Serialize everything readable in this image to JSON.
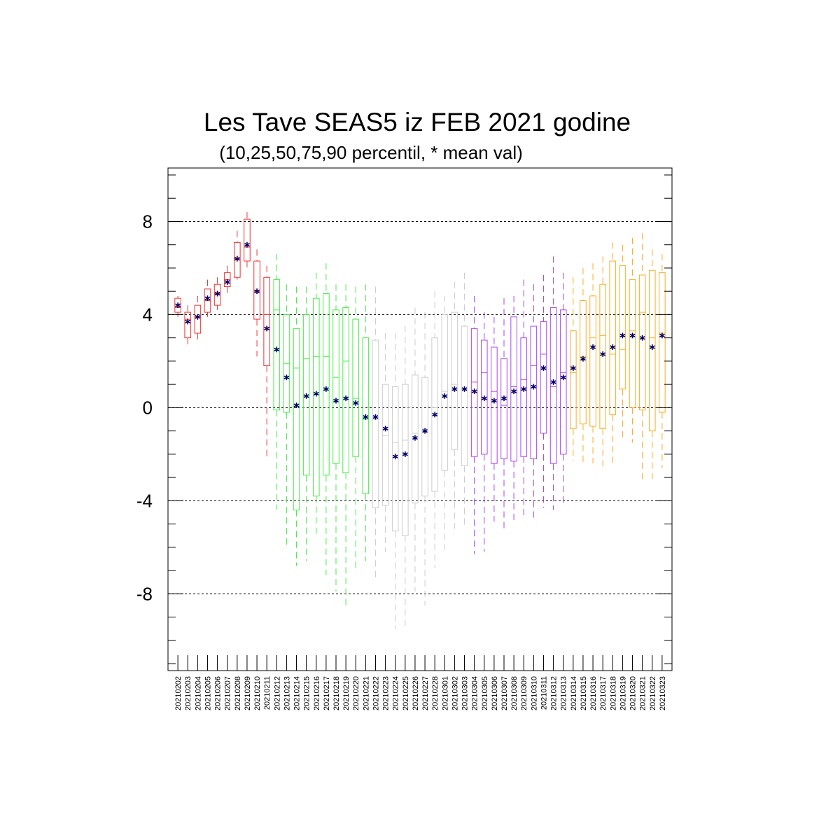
{
  "chart_data": {
    "type": "box",
    "title": "Les Tave SEAS5 iz FEB 2021 godine",
    "subtitle": "(10,25,50,75,90 percentil, * mean val)",
    "xlabel": "",
    "ylabel": "",
    "ylim": [
      -11.3,
      10.3
    ],
    "yticks": [
      8,
      4,
      0,
      -4,
      -8
    ],
    "ytick_labels": [
      "8",
      "4",
      "0",
      "-4",
      "-8"
    ],
    "grid": "dashed horizontal at major y ticks",
    "colors": {
      "red": "#ee3333",
      "green": "#44ee44",
      "gray": "#cccccc",
      "purple": "#aa44ee",
      "orange": "#ffaa22",
      "mean_marker": "#000066"
    },
    "series": [
      {
        "color": "red",
        "categories": [
          "20210202",
          "20210203",
          "20210204",
          "20210205",
          "20210206",
          "20210207",
          "20210208",
          "20210209",
          "20210210",
          "20210211"
        ],
        "p10": [
          3.9,
          2.7,
          2.9,
          3.9,
          4.2,
          4.9,
          5.5,
          5.9,
          2.2,
          -2.1
        ],
        "p25": [
          4.1,
          3.0,
          3.2,
          4.1,
          4.4,
          5.2,
          5.6,
          6.3,
          3.8,
          1.8
        ],
        "p50": [
          4.3,
          3.8,
          3.9,
          4.6,
          4.9,
          5.5,
          6.4,
          6.9,
          5.0,
          4.0
        ],
        "p75": [
          4.7,
          4.1,
          4.4,
          5.1,
          5.3,
          5.8,
          7.1,
          8.1,
          6.3,
          5.6
        ],
        "p90": [
          4.8,
          4.4,
          4.8,
          5.5,
          5.6,
          6.1,
          7.6,
          8.4,
          6.8,
          6.1
        ],
        "mean": [
          4.4,
          3.7,
          3.9,
          4.7,
          4.9,
          5.4,
          6.4,
          7.0,
          5.0,
          3.4
        ]
      },
      {
        "color": "green",
        "categories": [
          "20210212",
          "20210213",
          "20210214",
          "20210215",
          "20210216",
          "20210217",
          "20210218",
          "20210219",
          "20210220",
          "20210221"
        ],
        "p10": [
          -4.4,
          -5.9,
          -6.8,
          -6.6,
          -5.6,
          -7.2,
          -7.9,
          -8.6,
          -7.0,
          -6.6
        ],
        "p25": [
          -0.1,
          -0.2,
          -4.4,
          -2.9,
          -3.8,
          -2.9,
          -2.4,
          -2.8,
          -2.1,
          -3.7
        ],
        "p50": [
          4.2,
          1.9,
          1.7,
          2.1,
          2.2,
          2.2,
          1.3,
          2.0,
          0.4,
          -0.5
        ],
        "p75": [
          5.5,
          4.0,
          3.4,
          4.0,
          4.7,
          4.9,
          4.2,
          4.3,
          3.8,
          3.0
        ],
        "p90": [
          6.6,
          5.3,
          5.2,
          5.2,
          5.8,
          6.2,
          5.3,
          5.3,
          5.2,
          5.3
        ],
        "mean": [
          2.5,
          1.3,
          0.1,
          0.5,
          0.6,
          0.8,
          0.3,
          0.4,
          0.2,
          -0.4
        ]
      },
      {
        "color": "gray",
        "categories": [
          "20210222",
          "20210223",
          "20210224",
          "20210225",
          "20210226",
          "20210227",
          "20210228",
          "20210301",
          "20210302",
          "20210303"
        ],
        "p10": [
          -7.3,
          -6.2,
          -9.5,
          -9.5,
          -7.9,
          -8.5,
          -6.9,
          -6.3,
          -5.2,
          -5.1
        ],
        "p25": [
          -4.3,
          -4.2,
          -5.3,
          -5.5,
          -4.1,
          -3.8,
          -3.6,
          -2.7,
          -1.8,
          -2.5
        ],
        "p50": [
          -0.5,
          -1.2,
          -1.5,
          -1.4,
          -1.1,
          -0.9,
          0.0,
          0.7,
          1.0,
          0.8
        ],
        "p75": [
          2.9,
          1.0,
          0.9,
          1.0,
          1.4,
          1.3,
          3.0,
          4.0,
          4.1,
          3.5
        ],
        "p90": [
          5.2,
          3.2,
          3.2,
          3.5,
          4.3,
          4.1,
          5.0,
          4.8,
          5.4,
          5.8
        ],
        "mean": [
          -0.4,
          -0.9,
          -2.1,
          -2.0,
          -1.3,
          -1.0,
          -0.3,
          0.5,
          0.8,
          0.8
        ]
      },
      {
        "color": "purple",
        "categories": [
          "20210304",
          "20210305",
          "20210306",
          "20210307",
          "20210308",
          "20210309",
          "20210310",
          "20210311",
          "20210312",
          "20210313"
        ],
        "p10": [
          -6.3,
          -6.2,
          -4.9,
          -5.2,
          -4.9,
          -4.7,
          -4.9,
          -4.3,
          -4.4,
          -4.2
        ],
        "p25": [
          -2.1,
          -2.0,
          -2.4,
          -2.2,
          -2.3,
          -2.1,
          -2.2,
          -1.1,
          -2.4,
          -2.0
        ],
        "p50": [
          1.1,
          1.5,
          0.7,
          0.1,
          0.9,
          1.2,
          1.8,
          2.3,
          0.9,
          1.5
        ],
        "p75": [
          3.4,
          2.9,
          2.6,
          2.1,
          3.9,
          3.0,
          3.5,
          3.7,
          4.3,
          4.2
        ],
        "p90": [
          4.8,
          4.1,
          3.9,
          4.7,
          4.8,
          5.5,
          5.3,
          5.7,
          6.5,
          5.8
        ],
        "mean": [
          0.7,
          0.4,
          0.3,
          0.4,
          0.7,
          0.8,
          0.9,
          1.7,
          1.1,
          1.3
        ]
      },
      {
        "color": "orange",
        "categories": [
          "20210314",
          "20210315",
          "20210316",
          "20210317",
          "20210318",
          "20210319",
          "20210320",
          "20210321",
          "20210322",
          "20210323"
        ],
        "p10": [
          -2.3,
          -2.4,
          -2.4,
          -2.6,
          -2.5,
          -1.4,
          -1.5,
          -3.2,
          -3.1,
          -2.6
        ],
        "p25": [
          -0.9,
          -0.7,
          -0.8,
          -0.9,
          -0.3,
          0.8,
          0.0,
          -0.1,
          -1.0,
          -0.2
        ],
        "p50": [
          1.5,
          2.2,
          3.0,
          3.1,
          2.3,
          2.5,
          3.3,
          4.1,
          3.0,
          3.2
        ],
        "p75": [
          3.3,
          4.6,
          4.8,
          5.3,
          6.3,
          6.1,
          5.5,
          5.7,
          5.9,
          5.8
        ],
        "p90": [
          5.6,
          6.0,
          6.2,
          6.5,
          7.1,
          7.0,
          7.3,
          7.5,
          6.8,
          6.6
        ],
        "mean": [
          1.7,
          2.1,
          2.6,
          2.3,
          2.6,
          3.1,
          3.1,
          3.0,
          2.6,
          3.1
        ]
      }
    ]
  }
}
